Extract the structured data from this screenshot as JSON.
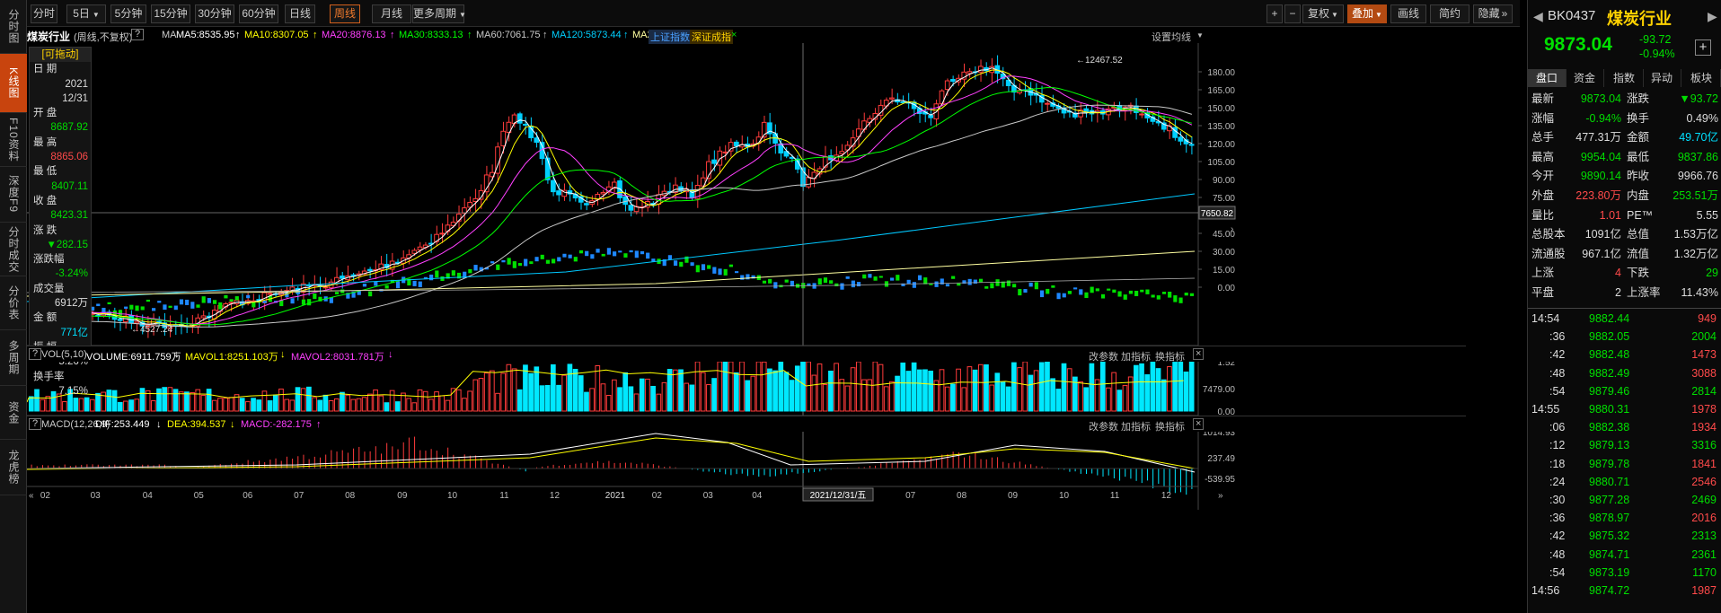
{
  "left_tabs": [
    "分时图",
    "K线图",
    "F10资料",
    "深度F9",
    "分时成交",
    "分价表",
    "多周期",
    "资金",
    "龙虎榜"
  ],
  "toolbar": {
    "periods": [
      "分时",
      "5日",
      "5分钟",
      "15分钟",
      "30分钟",
      "60分钟",
      "日线",
      "周线",
      "月线",
      "更多周期"
    ],
    "active_period": "周线",
    "right": [
      "复权",
      "叠加",
      "画线",
      "简约",
      "隐藏"
    ]
  },
  "ma_bar": {
    "title": "煤炭行业",
    "mode": "(周线,不复权)",
    "q": "?",
    "ma_label": "MA",
    "mas": [
      {
        "t": "MA5:8535.95",
        "c": "#ffffff"
      },
      {
        "t": "MA10:8307.05",
        "c": "#ffff00"
      },
      {
        "t": "MA20:8876.13",
        "c": "#ff40ff"
      },
      {
        "t": "MA30:8333.13",
        "c": "#00ff00"
      },
      {
        "t": "MA60:7061.75",
        "c": "#c8c8c8"
      },
      {
        "t": "MA120:5873.44",
        "c": "#00d0ff"
      },
      {
        "t": "MA250:5700.81",
        "c": "#ffffa0"
      }
    ],
    "tags": [
      "上证指数",
      "深证成指"
    ],
    "close_x": "×",
    "settings": "设置均线"
  },
  "infobox": {
    "drag": "[可拖动]",
    "rows": [
      {
        "l": "日  期"
      },
      {
        "v": "2021",
        "c": "#ddd"
      },
      {
        "v": "12/31",
        "c": "#ddd"
      },
      {
        "l": "开  盘"
      },
      {
        "v": "8687.92",
        "c": "#00dd00"
      },
      {
        "l": "最  高"
      },
      {
        "v": "8865.06",
        "c": "#ff4a4a"
      },
      {
        "l": "最  低"
      },
      {
        "v": "8407.11",
        "c": "#00dd00"
      },
      {
        "l": "收  盘"
      },
      {
        "v": "8423.31",
        "c": "#00dd00"
      },
      {
        "l": "涨  跌"
      },
      {
        "v": "▼282.15",
        "c": "#00dd00"
      },
      {
        "l": "涨跌幅"
      },
      {
        "v": "-3.24%",
        "c": "#00dd00"
      },
      {
        "l": "成交量"
      },
      {
        "v": "6912万",
        "c": "#ddd"
      },
      {
        "l": "金  额"
      },
      {
        "v": "771亿",
        "c": "#00e0ff"
      },
      {
        "l": "振  幅"
      },
      {
        "v": "5.26%",
        "c": "#ddd"
      },
      {
        "l": "换手率"
      },
      {
        "v": "7.15%",
        "c": "#ddd"
      }
    ]
  },
  "chart_labels": {
    "high": "12467.52",
    "low": "4527.24",
    "cross_price": "7650.82",
    "cross_date": "2021/12/31/五"
  },
  "price_axis": [
    "180.00",
    "165.00",
    "150.00",
    "135.00",
    "120.00",
    "105.00",
    "90.00",
    "75.00",
    "60.00",
    "45.00",
    "30.00",
    "15.00",
    "0.00"
  ],
  "vol_axis": [
    "1.52",
    "7479.00",
    "0.00"
  ],
  "macd_axis": [
    "1014.93",
    "237.49",
    "-539.95"
  ],
  "x_axis": [
    "02",
    "03",
    "04",
    "05",
    "06",
    "07",
    "08",
    "09",
    "10",
    "11",
    "12",
    "2021",
    "02",
    "03",
    "04",
    "05",
    "06",
    "07",
    "08",
    "09",
    "10",
    "11",
    "12"
  ],
  "vol_bar": {
    "name": "VOL(5,10)",
    "items": [
      {
        "t": "VOLUME:6911.759万",
        "c": "#ffffff"
      },
      {
        "t": "MAVOL1:8251.103万",
        "c": "#ffff00"
      },
      {
        "t": "MAVOL2:8031.781万",
        "c": "#ff40ff"
      }
    ],
    "actions": [
      "改参数",
      "加指标",
      "换指标"
    ]
  },
  "macd_bar": {
    "name": "MACD(12,26,9)",
    "items": [
      {
        "t": "DIF:253.449",
        "c": "#ffffff"
      },
      {
        "t": "DEA:394.537",
        "c": "#ffff00"
      },
      {
        "t": "MACD:-282.175",
        "c": "#ff40ff"
      }
    ],
    "actions": [
      "改参数",
      "加指标",
      "换指标"
    ]
  },
  "quote": {
    "code": "BK0437",
    "name": "煤炭行业",
    "price": "9873.04",
    "change": "-93.72",
    "pct": "-0.94%",
    "tabs": [
      "盘口",
      "资金",
      "指数",
      "异动",
      "板块"
    ],
    "rows": [
      [
        "最新",
        "9873.04",
        "#00dd00",
        "涨跌",
        "▼93.72",
        "#00dd00"
      ],
      [
        "涨幅",
        "-0.94%",
        "#00dd00",
        "换手",
        "0.49%",
        "#ddd"
      ],
      [
        "总手",
        "477.31万",
        "#ddd",
        "金额",
        "49.70亿",
        "#00e0ff"
      ],
      [
        "最高",
        "9954.04",
        "#00dd00",
        "最低",
        "9837.86",
        "#00dd00"
      ],
      [
        "今开",
        "9890.14",
        "#00dd00",
        "昨收",
        "9966.76",
        "#ddd"
      ],
      [
        "外盘",
        "223.80万",
        "#ff4a4a",
        "内盘",
        "253.51万",
        "#00dd00"
      ],
      [
        "量比",
        "1.01",
        "#ff4a4a",
        "PE™",
        "5.55",
        "#ddd"
      ],
      [
        "总股本",
        "1091亿",
        "#ddd",
        "总值",
        "1.53万亿",
        "#ddd"
      ],
      [
        "流通股",
        "967.1亿",
        "#ddd",
        "流值",
        "1.32万亿",
        "#ddd"
      ],
      [
        "上涨",
        "4",
        "#ff4a4a",
        "下跌",
        "29",
        "#00dd00"
      ],
      [
        "平盘",
        "2",
        "#ddd",
        "上涨率",
        "11.43%",
        "#ddd"
      ]
    ]
  },
  "ticks": [
    [
      "14:54",
      "9882.44",
      "949",
      "#ff4a4a"
    ],
    [
      ":36",
      "9882.05",
      "2004",
      "#00dd00"
    ],
    [
      ":42",
      "9882.48",
      "1473",
      "#ff4a4a"
    ],
    [
      ":48",
      "9882.49",
      "3088",
      "#ff4a4a"
    ],
    [
      ":54",
      "9879.46",
      "2814",
      "#00dd00"
    ],
    [
      "14:55",
      "9880.31",
      "1978",
      "#ff4a4a"
    ],
    [
      ":06",
      "9882.38",
      "1934",
      "#ff4a4a"
    ],
    [
      ":12",
      "9879.13",
      "3316",
      "#00dd00"
    ],
    [
      ":18",
      "9879.78",
      "1841",
      "#ff4a4a"
    ],
    [
      ":24",
      "9880.71",
      "2546",
      "#ff4a4a"
    ],
    [
      ":30",
      "9877.28",
      "2469",
      "#00dd00"
    ],
    [
      ":36",
      "9878.97",
      "2016",
      "#ff4a4a"
    ],
    [
      ":42",
      "9875.32",
      "2313",
      "#00dd00"
    ],
    [
      ":48",
      "9874.71",
      "2361",
      "#00dd00"
    ],
    [
      ":54",
      "9873.19",
      "1170",
      "#00dd00"
    ],
    [
      "14:56",
      "9874.72",
      "1987",
      "#ff4a4a"
    ]
  ]
}
